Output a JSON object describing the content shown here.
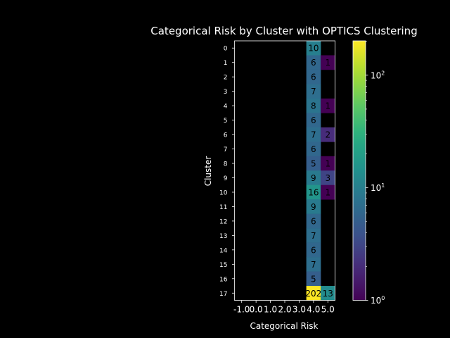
{
  "chart_data": {
    "type": "heatmap",
    "title": "Categorical Risk by Cluster with OPTICS Clustering",
    "xlabel": "Categorical Risk",
    "ylabel": "Cluster",
    "x_ticks": [
      "-1.0",
      "0.0",
      "1.0",
      "2.0",
      "3.0",
      "4.0",
      "5.0"
    ],
    "x_values": [
      -1,
      0,
      1,
      2,
      3,
      4,
      5
    ],
    "y_ticks": [
      "0",
      "1",
      "2",
      "3",
      "4",
      "5",
      "6",
      "7",
      "8",
      "9",
      "10",
      "11",
      "12",
      "13",
      "14",
      "15",
      "16",
      "17"
    ],
    "color_scale": "log",
    "colormap": "viridis",
    "clim": [
      1,
      202
    ],
    "colorbar_ticks": [
      {
        "value": 1,
        "base": "10",
        "exp": "0"
      },
      {
        "value": 10,
        "base": "10",
        "exp": "1"
      },
      {
        "value": 100,
        "base": "10",
        "exp": "2"
      }
    ],
    "cells": [
      {
        "cluster": 0,
        "risk": 4,
        "count": 10
      },
      {
        "cluster": 1,
        "risk": 4,
        "count": 6
      },
      {
        "cluster": 1,
        "risk": 5,
        "count": 1
      },
      {
        "cluster": 2,
        "risk": 4,
        "count": 6
      },
      {
        "cluster": 3,
        "risk": 4,
        "count": 7
      },
      {
        "cluster": 4,
        "risk": 4,
        "count": 8
      },
      {
        "cluster": 4,
        "risk": 5,
        "count": 1
      },
      {
        "cluster": 5,
        "risk": 4,
        "count": 6
      },
      {
        "cluster": 6,
        "risk": 4,
        "count": 7
      },
      {
        "cluster": 6,
        "risk": 5,
        "count": 2
      },
      {
        "cluster": 7,
        "risk": 4,
        "count": 6
      },
      {
        "cluster": 8,
        "risk": 4,
        "count": 5
      },
      {
        "cluster": 8,
        "risk": 5,
        "count": 1
      },
      {
        "cluster": 9,
        "risk": 4,
        "count": 9
      },
      {
        "cluster": 9,
        "risk": 5,
        "count": 3
      },
      {
        "cluster": 10,
        "risk": 4,
        "count": 16
      },
      {
        "cluster": 10,
        "risk": 5,
        "count": 1
      },
      {
        "cluster": 11,
        "risk": 4,
        "count": 9
      },
      {
        "cluster": 12,
        "risk": 4,
        "count": 6
      },
      {
        "cluster": 13,
        "risk": 4,
        "count": 7
      },
      {
        "cluster": 14,
        "risk": 4,
        "count": 6
      },
      {
        "cluster": 15,
        "risk": 4,
        "count": 7
      },
      {
        "cluster": 16,
        "risk": 4,
        "count": 5
      },
      {
        "cluster": 17,
        "risk": 4,
        "count": 202
      },
      {
        "cluster": 17,
        "risk": 5,
        "count": 13
      }
    ]
  }
}
